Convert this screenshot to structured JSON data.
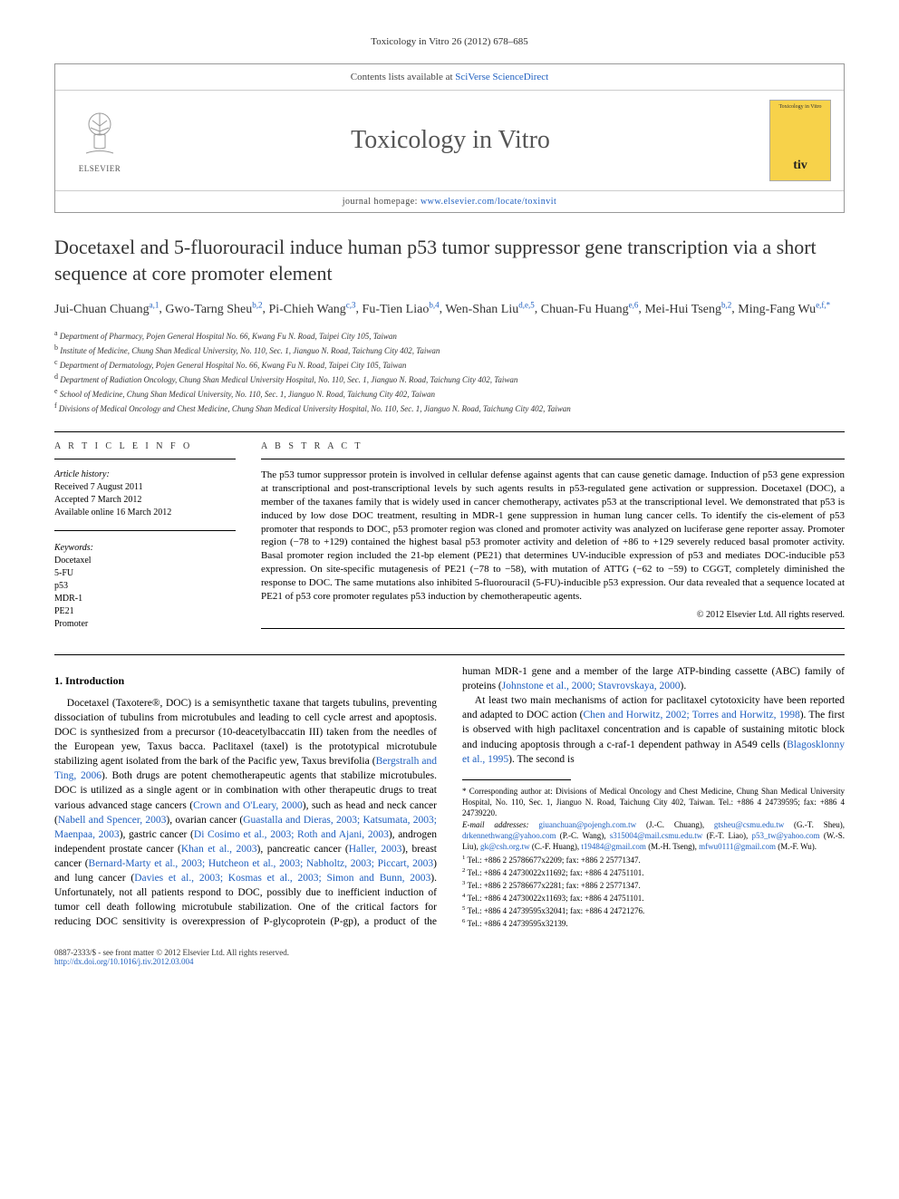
{
  "running_head": "Toxicology in Vitro 26 (2012) 678–685",
  "header": {
    "contents_text": "Contents lists available at ",
    "contents_link": "SciVerse ScienceDirect",
    "journal_name": "Toxicology in Vitro",
    "homepage_label": "journal homepage: ",
    "homepage_url": "www.elsevier.com/locate/toxinvit",
    "publisher": "ELSEVIER",
    "cover_title": "Toxicology in Vitro",
    "cover_abbrev": "tiv"
  },
  "title": "Docetaxel and 5-fluorouracil induce human p53 tumor suppressor gene transcription via a short sequence at core promoter element",
  "authors": [
    {
      "name": "Jui-Chuan Chuang",
      "affs": "a,1"
    },
    {
      "name": "Gwo-Tarng Sheu",
      "affs": "b,2"
    },
    {
      "name": "Pi-Chieh Wang",
      "affs": "c,3"
    },
    {
      "name": "Fu-Tien Liao",
      "affs": "b,4"
    },
    {
      "name": "Wen-Shan Liu",
      "affs": "d,e,5"
    },
    {
      "name": "Chuan-Fu Huang",
      "affs": "e,6"
    },
    {
      "name": "Mei-Hui Tseng",
      "affs": "b,2"
    },
    {
      "name": "Ming-Fang Wu",
      "affs": "e,f,*"
    }
  ],
  "affiliations": [
    {
      "sup": "a",
      "text": "Department of Pharmacy, Pojen General Hospital No. 66, Kwang Fu N. Road, Taipei City 105, Taiwan"
    },
    {
      "sup": "b",
      "text": "Institute of Medicine, Chung Shan Medical University, No. 110, Sec. 1, Jianguo N. Road, Taichung City 402, Taiwan"
    },
    {
      "sup": "c",
      "text": "Department of Dermatology, Pojen General Hospital No. 66, Kwang Fu N. Road, Taipei City 105, Taiwan"
    },
    {
      "sup": "d",
      "text": "Department of Radiation Oncology, Chung Shan Medical University Hospital, No. 110, Sec. 1, Jianguo N. Road, Taichung City 402, Taiwan"
    },
    {
      "sup": "e",
      "text": "School of Medicine, Chung Shan Medical University, No. 110, Sec. 1, Jianguo N. Road, Taichung City 402, Taiwan"
    },
    {
      "sup": "f",
      "text": "Divisions of Medical Oncology and Chest Medicine, Chung Shan Medical University Hospital, No. 110, Sec. 1, Jianguo N. Road, Taichung City 402, Taiwan"
    }
  ],
  "article_info": {
    "heading": "A R T I C L E   I N F O",
    "history_label": "Article history:",
    "received": "Received 7 August 2011",
    "accepted": "Accepted 7 March 2012",
    "online": "Available online 16 March 2012",
    "keywords_label": "Keywords:",
    "keywords": [
      "Docetaxel",
      "5-FU",
      "p53",
      "MDR-1",
      "PE21",
      "Promoter"
    ]
  },
  "abstract": {
    "heading": "A B S T R A C T",
    "text": "The p53 tumor suppressor protein is involved in cellular defense against agents that can cause genetic damage. Induction of p53 gene expression at transcriptional and post-transcriptional levels by such agents results in p53-regulated gene activation or suppression. Docetaxel (DOC), a member of the taxanes family that is widely used in cancer chemotherapy, activates p53 at the transcriptional level. We demonstrated that p53 is induced by low dose DOC treatment, resulting in MDR-1 gene suppression in human lung cancer cells. To identify the cis-element of p53 promoter that responds to DOC, p53 promoter region was cloned and promoter activity was analyzed on luciferase gene reporter assay. Promoter region (−78 to +129) contained the highest basal p53 promoter activity and deletion of +86 to +129 severely reduced basal promoter activity. Basal promoter region included the 21-bp element (PE21) that determines UV-inducible expression of p53 and mediates DOC-inducible p53 expression. On site-specific mutagenesis of PE21 (−78 to −58), with mutation of ATTG (−62 to −59) to CGGT, completely diminished the response to DOC. The same mutations also inhibited 5-fluorouracil (5-FU)-inducible p53 expression. Our data revealed that a sequence located at PE21 of p53 core promoter regulates p53 induction by chemotherapeutic agents.",
    "copyright": "© 2012 Elsevier Ltd. All rights reserved."
  },
  "section1": {
    "heading": "1. Introduction",
    "para1_pre": "Docetaxel (Taxotere®, DOC) is a semisynthetic taxane that targets tubulins, preventing dissociation of tubulins from microtubules and leading to cell cycle arrest and apoptosis. DOC is synthesized from a precursor (10-deacetylbaccatin III) taken from the needles of the European yew, Taxus bacca. Paclitaxel (taxel) is the prototypical microtubule stabilizing agent isolated from the bark of the Pacific yew, Taxus brevifolia (",
    "para1_link1": "Bergstralh and Ting, 2006",
    "para1_mid1": "). Both drugs are potent chemotherapeutic agents that stabilize microtubules. DOC is utilized as a single agent or in combination with other therapeutic drugs to treat various advanced stage cancers (",
    "para1_link2": "Crown and O'Leary, 2000",
    "para1_mid2": "), such as head and neck cancer (",
    "para1_link3": "Nabell and Spencer, 2003",
    "para1_mid3": "), ovarian cancer (",
    "para1_link4": "Guastalla and Dieras, 2003; Katsumata, 2003; Maenpaa, 2003",
    "para1_mid4": "), gastric cancer (",
    "para1_link5": "Di Cosimo et al., 2003; Roth and Ajani, 2003",
    "para1_mid5": "), androgen independent prostate cancer (",
    "para1_link6": "Khan et al., 2003",
    "para1_mid6": "), pancreatic cancer (",
    "para1_link7": "Haller, 2003",
    "para1_mid7": "), breast cancer (",
    "para1_link8": "Bernard-Marty et al., 2003; Hutcheon et al., 2003; Nabholtz, 2003; Piccart, 2003",
    "para1_mid8": ") and lung cancer (",
    "para1_link9": "Davies et al., 2003; Kosmas et al., 2003; Simon and Bunn, 2003",
    "para1_mid9": "). Unfortunately, not all patients respond to DOC, possibly due to inefficient induction of tumor cell death following microtubule stabilization. One of the critical factors for reducing DOC sensitivity is overexpression of P-glycoprotein (P-gp), a product of the human MDR-1 gene and a member of the large ATP-binding cassette (ABC) family of proteins (",
    "para1_link10": "Johnstone et al., 2000; Stavrovskaya, 2000",
    "para1_mid10": ").",
    "para2_pre": "At least two main mechanisms of action for paclitaxel cytotoxicity have been reported and adapted to DOC action (",
    "para2_link1": "Chen and Horwitz, 2002; Torres and Horwitz, 1998",
    "para2_mid1": "). The first is observed with high paclitaxel concentration and is capable of sustaining mitotic block and inducing apoptosis through a c-raf-1 dependent pathway in A549 cells (",
    "para2_link2": "Blagosklonny et al., 1995",
    "para2_mid2": "). The second is"
  },
  "footnotes": {
    "corresponding": "* Corresponding author at: Divisions of Medical Oncology and Chest Medicine, Chung Shan Medical University Hospital, No. 110, Sec. 1, Jianguo N. Road, Taichung City 402, Taiwan. Tel.: +886 4 24739595; fax: +886 4 24739220.",
    "email_label": "E-mail addresses: ",
    "emails": [
      {
        "addr": "giuanchuan@pojengh.com.tw",
        "who": "(J.-C. Chuang)"
      },
      {
        "addr": "gtsheu@csmu.edu.tw",
        "who": "(G.-T. Sheu)"
      },
      {
        "addr": "drkennethwang@yahoo.com",
        "who": "(P.-C. Wang)"
      },
      {
        "addr": "s315004@mail.csmu.edu.tw",
        "who": "(F.-T. Liao)"
      },
      {
        "addr": "p53_tw@yahoo.com",
        "who": "(W.-S. Liu)"
      },
      {
        "addr": "gk@csh.org.tw",
        "who": "(C.-F. Huang)"
      },
      {
        "addr": "t19484@gmail.com",
        "who": "(M.-H. Tseng)"
      },
      {
        "addr": "mfwu0111@gmail.com",
        "who": "(M.-F. Wu)"
      }
    ],
    "tels": [
      {
        "sup": "1",
        "text": "Tel.: +886 2 25786677x2209; fax: +886 2 25771347."
      },
      {
        "sup": "2",
        "text": "Tel.: +886 4 24730022x11692; fax: +886 4 24751101."
      },
      {
        "sup": "3",
        "text": "Tel.: +886 2 25786677x2281; fax: +886 2 25771347."
      },
      {
        "sup": "4",
        "text": "Tel.: +886 4 24730022x11693; fax: +886 4 24751101."
      },
      {
        "sup": "5",
        "text": "Tel.: +886 4 24739595x32041; fax: +886 4 24721276."
      },
      {
        "sup": "6",
        "text": "Tel.: +886 4 24739595x32139."
      }
    ]
  },
  "footer": {
    "line1": "0887-2333/$ - see front matter © 2012 Elsevier Ltd. All rights reserved.",
    "doi": "http://dx.doi.org/10.1016/j.tiv.2012.03.004"
  },
  "colors": {
    "link": "#2060c0",
    "cover_bg": "#f7d24a",
    "text": "#000000",
    "rule": "#000000"
  }
}
